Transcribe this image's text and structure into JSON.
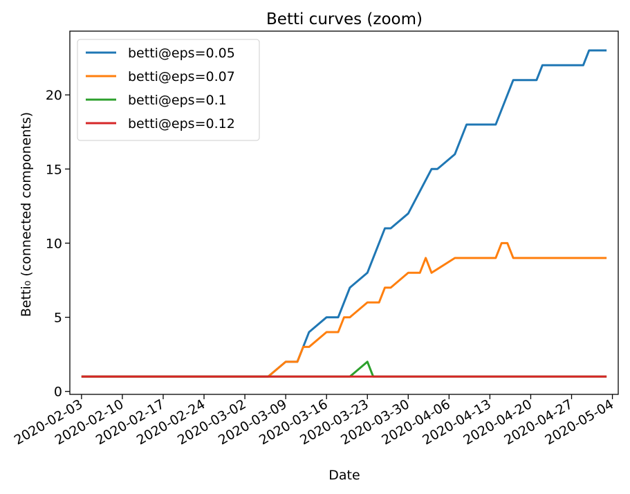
{
  "chart_data": {
    "type": "line",
    "title": "Betti curves (zoom)",
    "xlabel": "Date",
    "ylabel": "Betti₀ (connected components)",
    "x_tick_labels": [
      "2020-02-03",
      "2020-02-10",
      "2020-02-17",
      "2020-02-24",
      "2020-03-02",
      "2020-03-09",
      "2020-03-16",
      "2020-03-23",
      "2020-03-30",
      "2020-04-06",
      "2020-04-13",
      "2020-04-20",
      "2020-04-27",
      "2020-05-04"
    ],
    "y_tick_labels": [
      "0",
      "5",
      "10",
      "15",
      "20"
    ],
    "ylim": [
      -0.2,
      24.3
    ],
    "xlim": [
      "2020-02-01",
      "2020-05-05"
    ],
    "grid": false,
    "legend_position": "top-left",
    "series": [
      {
        "name": "betti@eps=0.05",
        "color": "#1f77b4",
        "points": [
          [
            "2020-02-03",
            1
          ],
          [
            "2020-03-06",
            1
          ],
          [
            "2020-03-09",
            2
          ],
          [
            "2020-03-11",
            2
          ],
          [
            "2020-03-13",
            4
          ],
          [
            "2020-03-16",
            5
          ],
          [
            "2020-03-18",
            5
          ],
          [
            "2020-03-20",
            7
          ],
          [
            "2020-03-23",
            8
          ],
          [
            "2020-03-26",
            11
          ],
          [
            "2020-03-27",
            11
          ],
          [
            "2020-03-30",
            12
          ],
          [
            "2020-04-03",
            15
          ],
          [
            "2020-04-04",
            15
          ],
          [
            "2020-04-07",
            16
          ],
          [
            "2020-04-09",
            18
          ],
          [
            "2020-04-14",
            18
          ],
          [
            "2020-04-17",
            21
          ],
          [
            "2020-04-21",
            21
          ],
          [
            "2020-04-22",
            22
          ],
          [
            "2020-04-29",
            22
          ],
          [
            "2020-04-30",
            23
          ],
          [
            "2020-05-03",
            23
          ]
        ]
      },
      {
        "name": "betti@eps=0.07",
        "color": "#ff7f0e",
        "points": [
          [
            "2020-02-03",
            1
          ],
          [
            "2020-03-06",
            1
          ],
          [
            "2020-03-09",
            2
          ],
          [
            "2020-03-11",
            2
          ],
          [
            "2020-03-12",
            3
          ],
          [
            "2020-03-13",
            3
          ],
          [
            "2020-03-16",
            4
          ],
          [
            "2020-03-18",
            4
          ],
          [
            "2020-03-19",
            5
          ],
          [
            "2020-03-20",
            5
          ],
          [
            "2020-03-23",
            6
          ],
          [
            "2020-03-25",
            6
          ],
          [
            "2020-03-26",
            7
          ],
          [
            "2020-03-27",
            7
          ],
          [
            "2020-03-30",
            8
          ],
          [
            "2020-04-01",
            8
          ],
          [
            "2020-04-02",
            9
          ],
          [
            "2020-04-03",
            8
          ],
          [
            "2020-04-07",
            9
          ],
          [
            "2020-04-14",
            9
          ],
          [
            "2020-04-15",
            10
          ],
          [
            "2020-04-16",
            10
          ],
          [
            "2020-04-17",
            9
          ],
          [
            "2020-05-03",
            9
          ]
        ]
      },
      {
        "name": "betti@eps=0.1",
        "color": "#2ca02c",
        "points": [
          [
            "2020-02-03",
            1
          ],
          [
            "2020-03-20",
            1
          ],
          [
            "2020-03-23",
            2
          ],
          [
            "2020-03-24",
            1
          ],
          [
            "2020-05-03",
            1
          ]
        ]
      },
      {
        "name": "betti@eps=0.12",
        "color": "#d62728",
        "points": [
          [
            "2020-02-03",
            1
          ],
          [
            "2020-05-03",
            1
          ]
        ]
      }
    ]
  }
}
